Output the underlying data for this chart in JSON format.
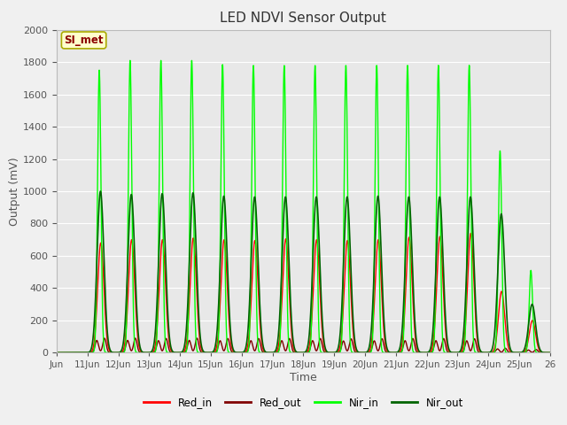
{
  "title": "LED NDVI Sensor Output",
  "xlabel": "Time",
  "ylabel": "Output (mV)",
  "ylim": [
    0,
    2000
  ],
  "fig_bg_color": "#f0f0f0",
  "plot_bg_color": "#e8e8e8",
  "annotation_text": "SI_met",
  "annotation_bg": "#ffffcc",
  "annotation_border": "#aaaa00",
  "series": {
    "Red_in": {
      "color": "#ff0000",
      "lw": 1.0
    },
    "Red_out": {
      "color": "#800000",
      "lw": 1.0
    },
    "Nir_in": {
      "color": "#00ff00",
      "lw": 1.0
    },
    "Nir_out": {
      "color": "#006400",
      "lw": 1.2
    }
  },
  "tick_labels": [
    "Jun",
    "11Jun",
    "12Jun",
    "13Jun",
    "14Jun",
    "15Jun",
    "16Jun",
    "17Jun",
    "18Jun",
    "19Jun",
    "20Jun",
    "21Jun",
    "22Jun",
    "23Jun",
    "24Jun",
    "25Jun",
    "26"
  ],
  "nir_in_peaks": [
    1750,
    1810,
    1810,
    1810,
    1785,
    1780,
    1780,
    1780,
    1780,
    1780,
    1780,
    1780,
    1780,
    1250,
    510
  ],
  "nir_out_peaks": [
    1000,
    980,
    985,
    990,
    970,
    965,
    965,
    965,
    965,
    970,
    965,
    965,
    965,
    860,
    300
  ],
  "red_in_peaks": [
    680,
    700,
    700,
    710,
    700,
    695,
    705,
    700,
    695,
    700,
    715,
    720,
    740,
    380,
    200
  ],
  "red_out_peaks": [
    90,
    90,
    88,
    90,
    88,
    88,
    88,
    88,
    86,
    87,
    88,
    88,
    87,
    28,
    20
  ],
  "yticks": [
    0,
    200,
    400,
    600,
    800,
    1000,
    1200,
    1400,
    1600,
    1800,
    2000
  ]
}
